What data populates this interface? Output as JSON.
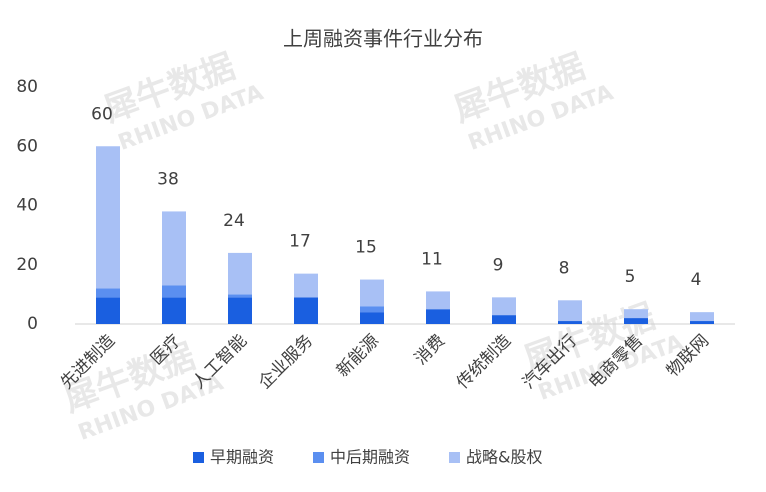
{
  "chart_data": {
    "type": "stacked_bar",
    "title": "上周融资事件行业分布",
    "watermark": "犀牛数据",
    "watermark_sub": "RHINO DATA",
    "categories": [
      "先进制造",
      "医疗",
      "人工智能",
      "企业服务",
      "新能源",
      "消费",
      "传统制造",
      "汽车出行",
      "电商零售",
      "物联网"
    ],
    "series": [
      {
        "name": "早期融资",
        "color": "#1a5fe0",
        "values": [
          9,
          9,
          9,
          9,
          4,
          5,
          3,
          1,
          2,
          1
        ]
      },
      {
        "name": "中后期融资",
        "color": "#5b8ff0",
        "values": [
          3,
          4,
          1,
          0,
          2,
          0,
          0,
          0,
          0,
          0
        ]
      },
      {
        "name": "战略&股权",
        "color": "#a8c0f5",
        "values": [
          48,
          25,
          14,
          8,
          9,
          6,
          6,
          7,
          3,
          3
        ]
      }
    ],
    "totals": [
      60,
      38,
      24,
      17,
      15,
      11,
      9,
      8,
      5,
      4
    ],
    "ylim": [
      0,
      80
    ],
    "yticks": [
      0,
      20,
      40,
      60,
      80
    ],
    "grid": false,
    "legend": "bottom"
  }
}
